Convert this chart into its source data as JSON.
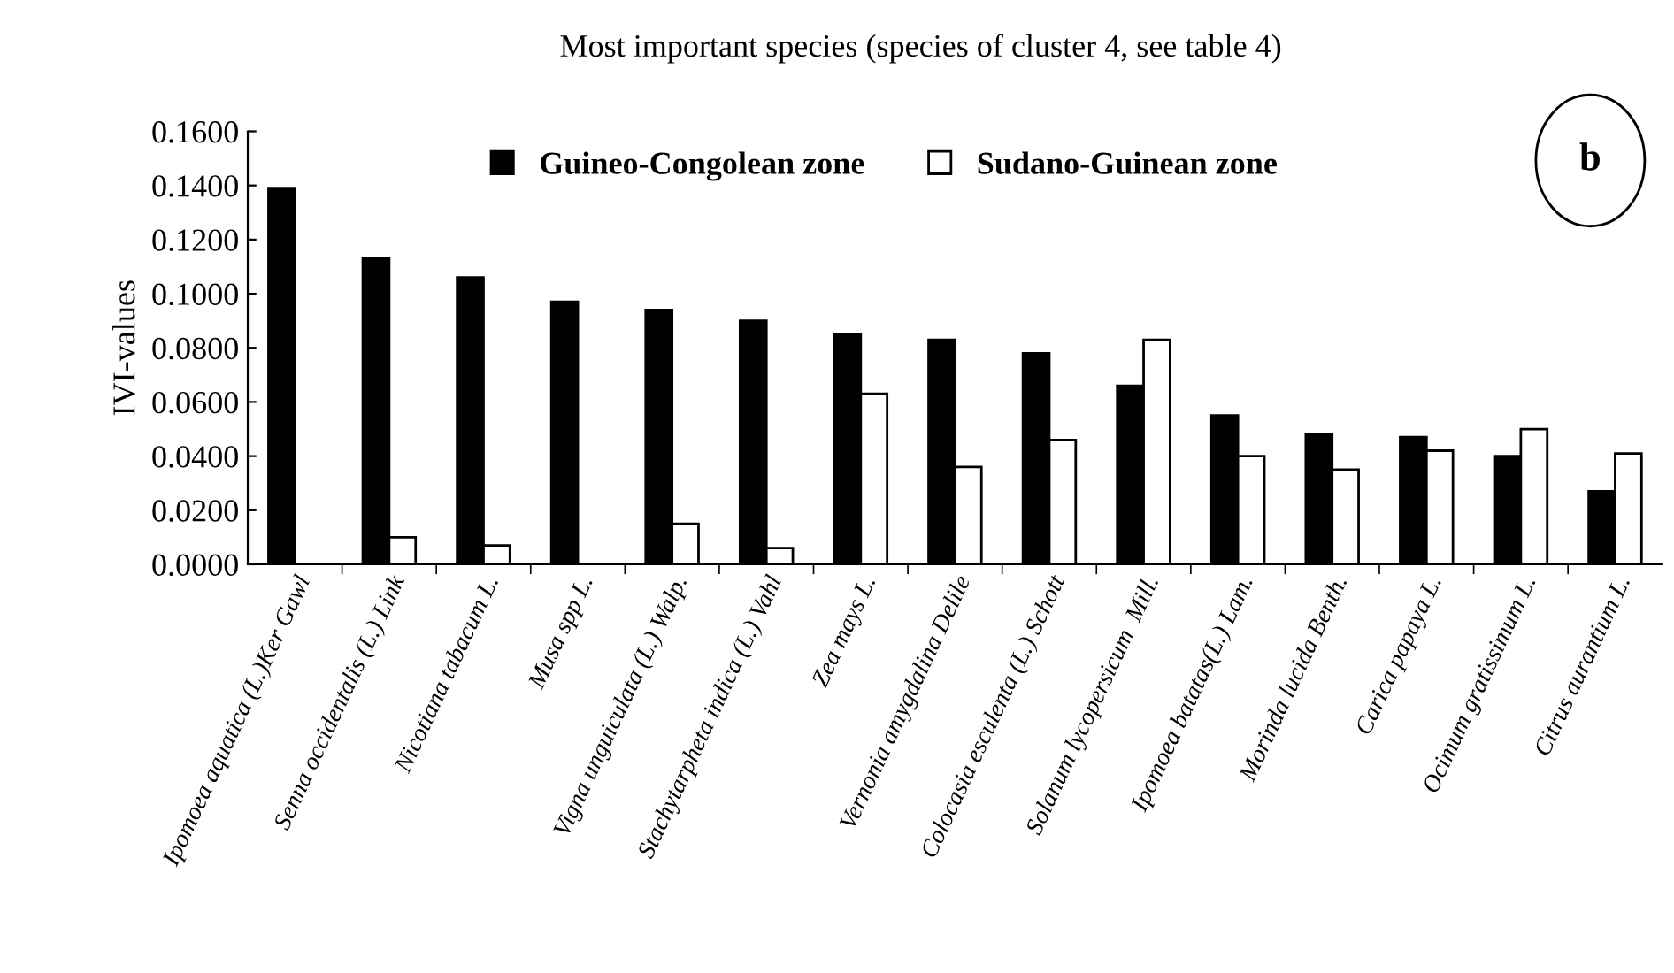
{
  "chart_data": {
    "type": "bar",
    "title": "Most important species (species of cluster 4, see table 4)",
    "ylabel": "IVI-values",
    "categories": [
      "Ipomoea aquatica (L.)Ker Gawl",
      "Senna occidentalis (L.) Link",
      "Nicotiana tabacum L.",
      "Musa spp L.",
      "Vigna unguiculata (L.) Walp.",
      "Stachytarpheta indica (L.) Vahl",
      "Zea mays L.",
      "Vernonia amygdalina Delile",
      "Colocasia esculenta (L.) Schott",
      "Solanum lycopersicum  Mill.",
      "Ipomoea batatas(L.) Lam.",
      "Morinda lucida Benth.",
      "Carica papaya L.",
      "Ocimum gratissimum L.",
      "Citrus aurantium L."
    ],
    "series": [
      {
        "name": "Guineo-Congolean zone",
        "color": "#000000",
        "values": [
          0.139,
          0.113,
          0.106,
          0.097,
          0.094,
          0.09,
          0.085,
          0.083,
          0.078,
          0.066,
          0.055,
          0.048,
          0.047,
          0.04,
          0.027
        ]
      },
      {
        "name": "Sudano-Guinean zone",
        "color": "#ffffff",
        "values": [
          null,
          0.01,
          0.007,
          null,
          0.015,
          0.006,
          0.063,
          0.036,
          0.046,
          0.083,
          0.04,
          0.035,
          0.042,
          0.05,
          0.041
        ]
      }
    ],
    "ylim": [
      0,
      0.16
    ],
    "yticks": [
      {
        "value": 0,
        "label": "0.0000"
      },
      {
        "value": 0.02,
        "label": "0.0200"
      },
      {
        "value": 0.04,
        "label": "0.0400"
      },
      {
        "value": 0.06,
        "label": "0.0600"
      },
      {
        "value": 0.08,
        "label": "0.0800"
      },
      {
        "value": 0.1,
        "label": "0.1000"
      },
      {
        "value": 0.12,
        "label": "0.1200"
      },
      {
        "value": 0.14,
        "label": "0.1400"
      },
      {
        "value": 0.16,
        "label": "0.1600"
      }
    ],
    "annotations": [
      "b"
    ],
    "legend": "top",
    "grid": false
  }
}
